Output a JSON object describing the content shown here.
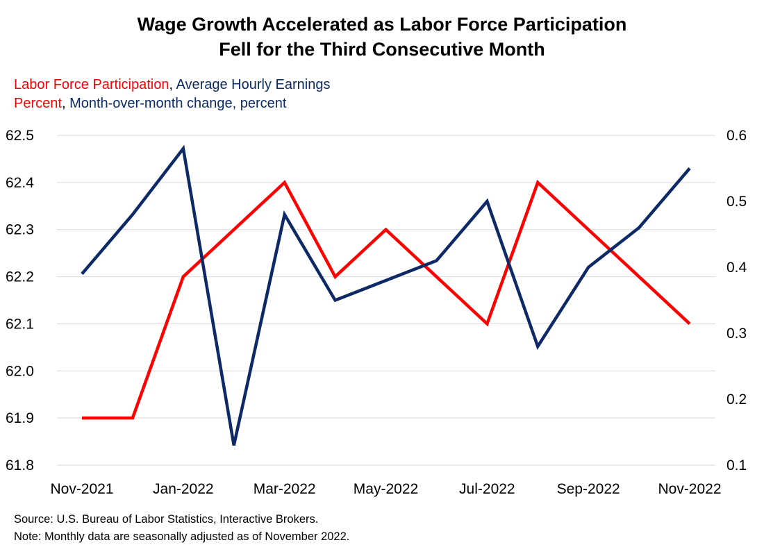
{
  "chart_data": {
    "type": "line",
    "title_lines": [
      "Wage Growth Accelerated as Labor Force Participation",
      "Fell for the Third Consecutive Month"
    ],
    "legend": {
      "series1_name": "Labor Force Participation",
      "series2_name": "Average Hourly Earnings",
      "series1_unit": "Percent",
      "series2_unit": "Month-over-month change, percent",
      "separator": ", "
    },
    "x": [
      "Nov-2021",
      "Dec-2021",
      "Jan-2022",
      "Feb-2022",
      "Mar-2022",
      "Apr-2022",
      "May-2022",
      "Jun-2022",
      "Jul-2022",
      "Aug-2022",
      "Sep-2022",
      "Oct-2022",
      "Nov-2022"
    ],
    "x_tick_labels": [
      "Nov-2021",
      "Jan-2022",
      "Mar-2022",
      "May-2022",
      "Jul-2022",
      "Sep-2022",
      "Nov-2022"
    ],
    "y_left": {
      "range": [
        61.8,
        62.5
      ],
      "ticks": [
        "61.8",
        "61.9",
        "62.0",
        "62.1",
        "62.2",
        "62.3",
        "62.4",
        "62.5"
      ]
    },
    "y_right": {
      "range": [
        0.1,
        0.6
      ],
      "ticks": [
        "0.1",
        "0.2",
        "0.3",
        "0.4",
        "0.5",
        "0.6"
      ]
    },
    "grid": true,
    "series": [
      {
        "name": "Labor Force Participation",
        "axis": "left",
        "color": "#ff0000",
        "values": [
          61.9,
          61.9,
          62.2,
          62.3,
          62.4,
          62.2,
          62.3,
          62.2,
          62.1,
          62.4,
          62.3,
          62.2,
          62.1
        ]
      },
      {
        "name": "Average Hourly Earnings",
        "axis": "right",
        "color": "#0d2a66",
        "values": [
          0.39,
          0.48,
          0.58,
          0.13,
          0.48,
          0.35,
          0.38,
          0.41,
          0.5,
          0.28,
          0.4,
          0.46,
          0.55
        ]
      }
    ]
  },
  "footer": {
    "source": "Source: U.S. Bureau of Labor Statistics, Interactive Brokers.",
    "note": "Note: Monthly data are seasonally adjusted as of November 2022."
  }
}
